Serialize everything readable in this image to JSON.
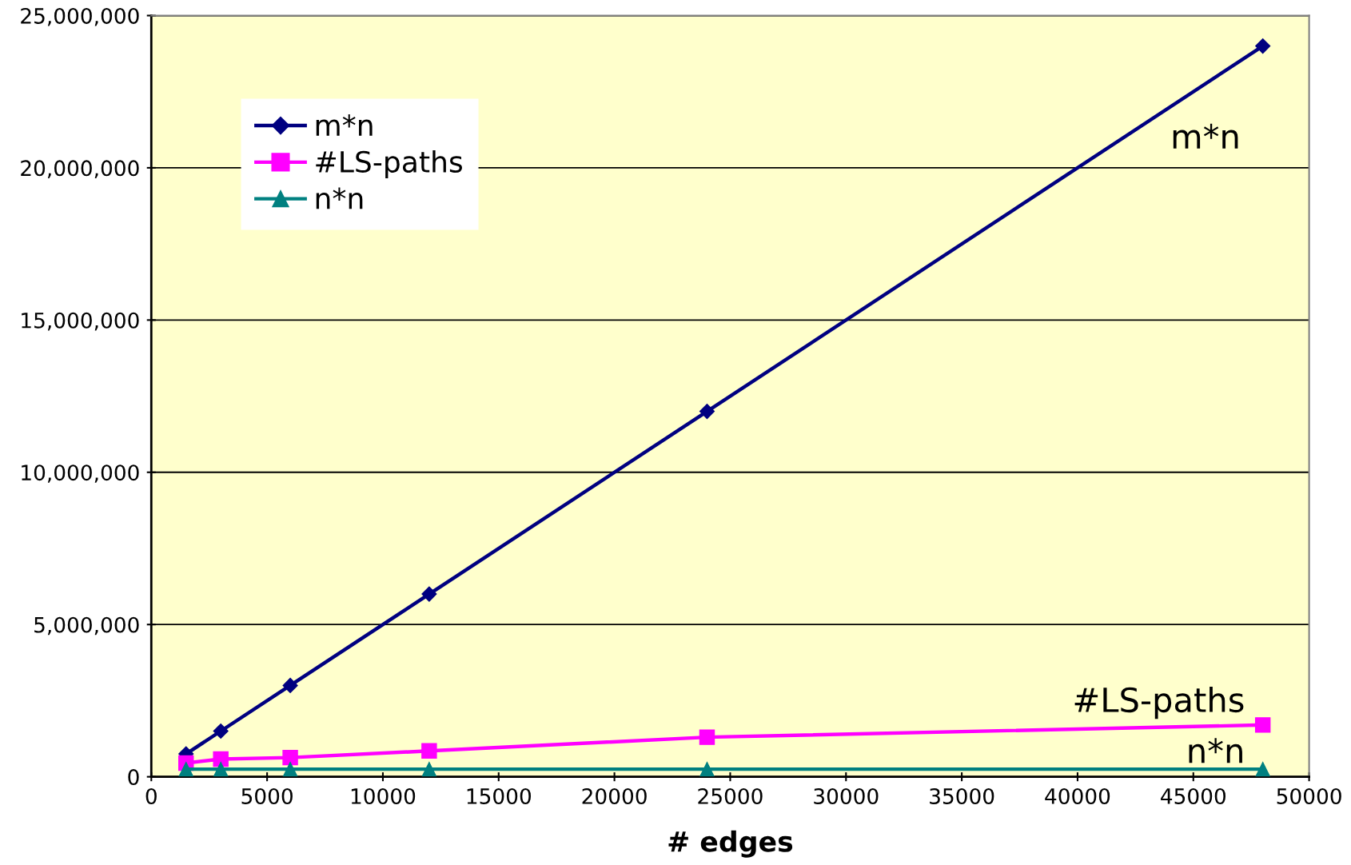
{
  "chart_data": {
    "type": "line",
    "xlabel": "# edges",
    "x": [
      1500,
      3000,
      6000,
      12000,
      24000,
      48000
    ],
    "series": [
      {
        "name": "m*n",
        "color": "#000080",
        "marker": "diamond",
        "values": [
          750000,
          1500000,
          3000000,
          6000000,
          12000000,
          24000000
        ]
      },
      {
        "name": "#LS-paths",
        "color": "#ff00ff",
        "marker": "square",
        "values": [
          450000,
          580000,
          630000,
          850000,
          1300000,
          1700000
        ]
      },
      {
        "name": "n*n",
        "color": "#008080",
        "marker": "triangle",
        "values": [
          250000,
          250000,
          250000,
          250000,
          250000,
          250000
        ]
      }
    ],
    "xlim": [
      0,
      50000
    ],
    "xticks": [
      0,
      5000,
      10000,
      15000,
      20000,
      25000,
      30000,
      35000,
      40000,
      45000,
      50000
    ],
    "ylim": [
      0,
      25000000
    ],
    "yticks": [
      0,
      {
        "value": 5000000,
        "label": "5,000,000"
      },
      {
        "value": 10000000,
        "label": "10,000,000"
      },
      {
        "value": 15000000,
        "label": "15,000,000"
      },
      {
        "value": 20000000,
        "label": "20,000,000"
      },
      {
        "value": 25000000,
        "label": "25,000,000"
      }
    ],
    "grid": "y",
    "legend": "top left",
    "line_style": "solid",
    "annotations": [
      "m*n",
      "#LS-paths",
      "n*n"
    ]
  }
}
